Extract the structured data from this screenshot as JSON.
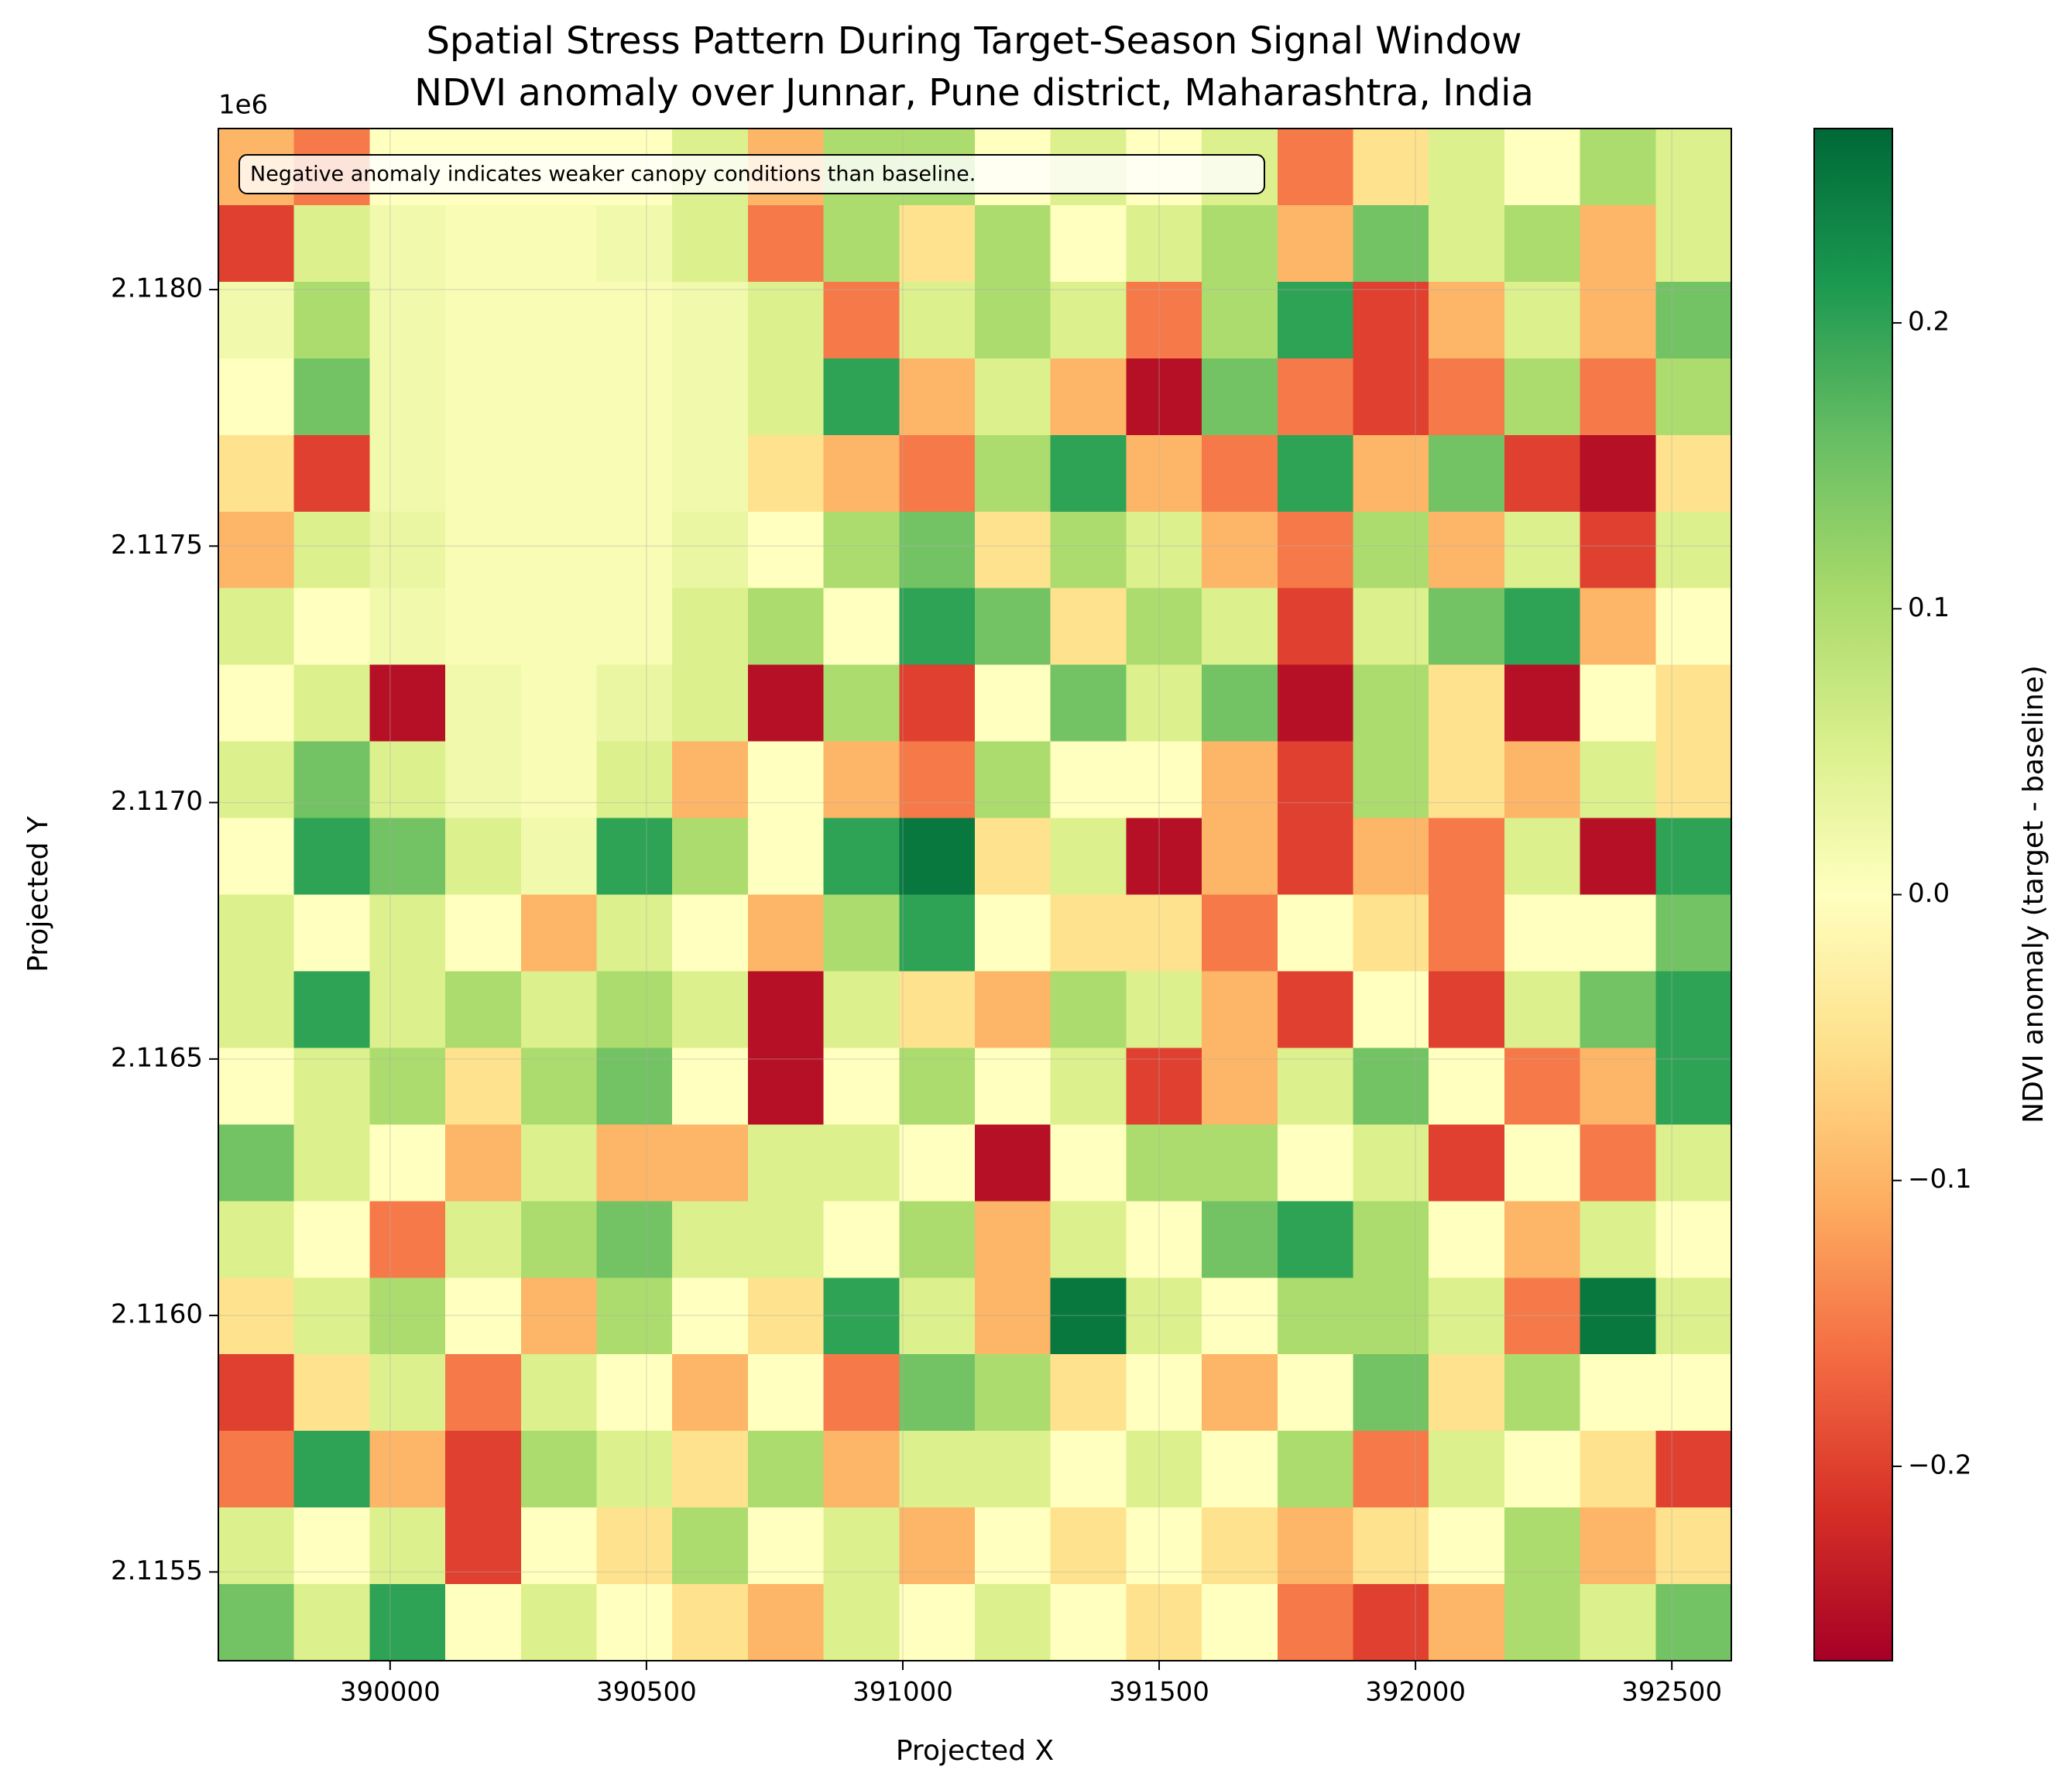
{
  "chart_data": {
    "type": "heatmap",
    "title": "Spatial Stress Pattern During Target-Season Signal Window",
    "subtitle": "NDVI anomaly over Junnar, Pune district, Maharashtra, India",
    "x_label": "Projected X",
    "y_label": "Projected Y",
    "y_offset_label": "1e6",
    "annotation": "Negative anomaly indicates weaker canopy conditions than baseline.",
    "colorbar_label": "NDVI anomaly (target - baseline)",
    "xlim": [
      389665,
      392616
    ],
    "ylim": [
      2115327,
      2118314
    ],
    "xticks": [
      390000,
      390500,
      391000,
      391500,
      392000,
      392500
    ],
    "yticks": [
      {
        "value": 2115500,
        "label": "2.1155"
      },
      {
        "value": 2116000,
        "label": "2.1160"
      },
      {
        "value": 2116500,
        "label": "2.1165"
      },
      {
        "value": 2117000,
        "label": "2.1170"
      },
      {
        "value": 2117500,
        "label": "2.1175"
      },
      {
        "value": 2118000,
        "label": "2.1180"
      }
    ],
    "clim": [
      -0.268,
      0.268
    ],
    "cticks": [
      {
        "value": -0.2,
        "label": "−0.2"
      },
      {
        "value": -0.1,
        "label": "−0.1"
      },
      {
        "value": 0,
        "label": "0.0"
      },
      0.1,
      0.2
    ],
    "colormap": [
      "#a50026",
      "#d73027",
      "#f46d43",
      "#fdae61",
      "#fee08b",
      "#ffffbf",
      "#d9ef8b",
      "#a6d96a",
      "#66bd63",
      "#1a9850",
      "#006837"
    ],
    "grid": true,
    "z": [
      [
        -0.1,
        -0.15,
        0.0,
        0.0,
        0.0,
        0.0,
        0.05,
        -0.1,
        0.1,
        0.1,
        0.0,
        0.05,
        0.0,
        0.05,
        -0.15,
        -0.05,
        0.05,
        0.0,
        0.1,
        0.05
      ],
      [
        -0.2,
        0.05,
        0.02,
        0.01,
        0.01,
        0.02,
        0.05,
        -0.15,
        0.1,
        -0.05,
        0.1,
        0.0,
        0.05,
        0.1,
        -0.1,
        0.15,
        0.05,
        0.1,
        -0.1,
        0.05
      ],
      [
        0.02,
        0.1,
        0.02,
        0.01,
        0.01,
        0.01,
        0.02,
        0.05,
        -0.15,
        0.05,
        0.1,
        0.05,
        -0.15,
        0.1,
        0.2,
        -0.2,
        -0.1,
        0.05,
        -0.1,
        0.15
      ],
      [
        0.0,
        0.15,
        0.02,
        0.01,
        0.01,
        0.01,
        0.02,
        0.05,
        0.2,
        -0.1,
        0.05,
        -0.1,
        -0.25,
        0.15,
        -0.15,
        -0.2,
        -0.15,
        0.1,
        -0.15,
        0.1
      ],
      [
        -0.05,
        -0.2,
        0.02,
        0.01,
        0.01,
        0.01,
        0.02,
        -0.05,
        -0.1,
        -0.15,
        0.1,
        0.2,
        -0.1,
        -0.15,
        0.2,
        -0.1,
        0.15,
        -0.2,
        -0.25,
        -0.05
      ],
      [
        -0.1,
        0.05,
        0.03,
        0.01,
        0.01,
        0.01,
        0.03,
        0.0,
        0.1,
        0.15,
        -0.05,
        0.1,
        0.05,
        -0.1,
        -0.15,
        0.1,
        -0.1,
        0.05,
        -0.2,
        0.05
      ],
      [
        0.05,
        0.0,
        0.02,
        0.01,
        0.01,
        0.01,
        0.05,
        0.1,
        0.0,
        0.2,
        0.15,
        -0.05,
        0.1,
        0.05,
        -0.2,
        0.05,
        0.15,
        0.2,
        -0.1,
        0.0
      ],
      [
        0.0,
        0.05,
        -0.25,
        0.02,
        0.01,
        0.03,
        0.05,
        -0.25,
        0.1,
        -0.2,
        0.0,
        0.15,
        0.05,
        0.15,
        -0.25,
        0.1,
        -0.05,
        -0.25,
        0.0,
        -0.05
      ],
      [
        0.05,
        0.15,
        0.05,
        0.02,
        0.01,
        0.05,
        -0.1,
        0.0,
        -0.1,
        -0.15,
        0.1,
        0.0,
        0.0,
        -0.1,
        -0.2,
        0.1,
        -0.05,
        -0.1,
        0.05,
        -0.05
      ],
      [
        0.0,
        0.2,
        0.15,
        0.05,
        0.02,
        0.2,
        0.1,
        0.0,
        0.2,
        0.25,
        -0.05,
        0.05,
        -0.25,
        -0.1,
        -0.2,
        -0.1,
        -0.15,
        0.05,
        -0.25,
        0.2
      ],
      [
        0.05,
        0.0,
        0.05,
        0.0,
        -0.1,
        0.05,
        0.0,
        -0.1,
        0.1,
        0.2,
        0.0,
        -0.05,
        -0.05,
        -0.15,
        0.0,
        -0.05,
        -0.15,
        0.0,
        0.0,
        0.15
      ],
      [
        0.05,
        0.2,
        0.05,
        0.1,
        0.05,
        0.1,
        0.05,
        -0.25,
        0.05,
        -0.05,
        -0.1,
        0.1,
        0.05,
        -0.1,
        -0.2,
        0.0,
        -0.2,
        0.05,
        0.15,
        0.2
      ],
      [
        0.0,
        0.05,
        0.1,
        -0.05,
        0.1,
        0.15,
        0.0,
        -0.25,
        0.0,
        0.1,
        0.0,
        0.05,
        -0.2,
        -0.1,
        0.05,
        0.15,
        0.0,
        -0.15,
        -0.1,
        0.2
      ],
      [
        0.15,
        0.05,
        0.0,
        -0.1,
        0.05,
        -0.1,
        -0.1,
        0.05,
        0.05,
        0.0,
        -0.25,
        0.0,
        0.1,
        0.1,
        0.0,
        0.05,
        -0.2,
        0.0,
        -0.15,
        0.05
      ],
      [
        0.05,
        0.0,
        -0.15,
        0.05,
        0.1,
        0.15,
        0.05,
        0.05,
        0.0,
        0.1,
        -0.1,
        0.05,
        0.0,
        0.15,
        0.2,
        0.1,
        0.0,
        -0.1,
        0.05,
        0.0
      ],
      [
        -0.05,
        0.05,
        0.1,
        0.0,
        -0.1,
        0.1,
        0.0,
        -0.05,
        0.2,
        0.05,
        -0.1,
        0.25,
        0.05,
        0.0,
        0.1,
        0.1,
        0.05,
        -0.15,
        0.25,
        0.05
      ],
      [
        -0.2,
        -0.05,
        0.05,
        -0.15,
        0.05,
        0.0,
        -0.1,
        0.0,
        -0.15,
        0.15,
        0.1,
        -0.05,
        0.0,
        -0.1,
        0.0,
        0.15,
        -0.05,
        0.1,
        0.0,
        0.0
      ],
      [
        -0.15,
        0.2,
        -0.1,
        -0.2,
        0.1,
        0.05,
        -0.05,
        0.1,
        -0.1,
        0.05,
        0.05,
        0.0,
        0.05,
        0.0,
        0.1,
        -0.15,
        0.05,
        0.0,
        -0.05,
        -0.2
      ],
      [
        0.05,
        0.0,
        0.05,
        -0.2,
        0.0,
        -0.05,
        0.1,
        0.0,
        0.05,
        -0.1,
        0.0,
        -0.05,
        0.0,
        -0.05,
        -0.1,
        -0.05,
        0.0,
        0.1,
        -0.1,
        -0.05
      ],
      [
        0.15,
        0.05,
        0.2,
        0.0,
        0.05,
        0.0,
        -0.05,
        -0.1,
        0.05,
        0.0,
        0.05,
        0.0,
        -0.05,
        0.0,
        -0.15,
        -0.2,
        -0.1,
        0.1,
        0.05,
        0.15
      ]
    ]
  }
}
